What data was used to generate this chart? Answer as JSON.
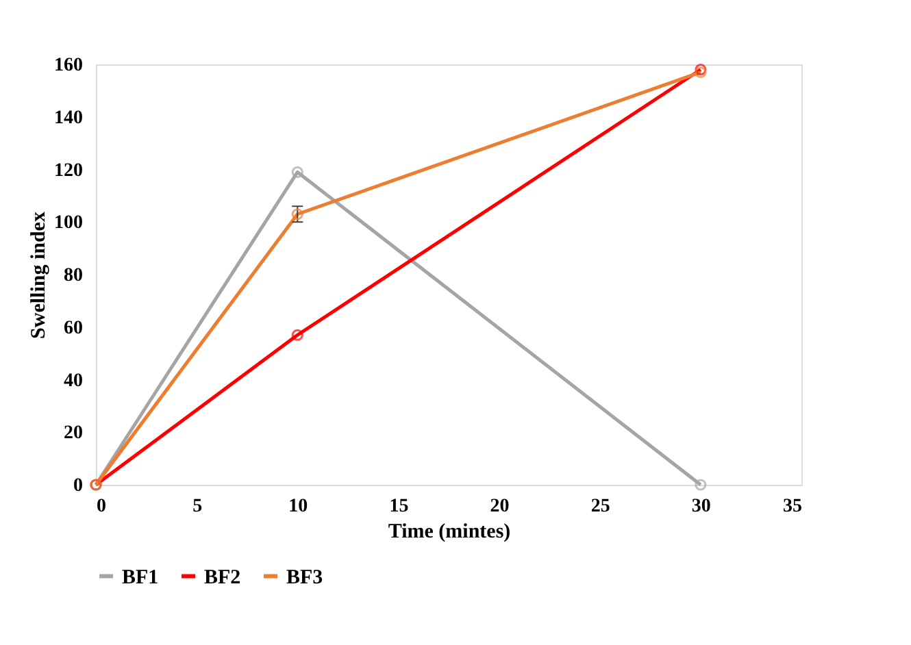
{
  "chart_data": {
    "type": "line",
    "xlabel": "Time (mintes)",
    "ylabel": "Swelling index",
    "x": [
      0,
      10,
      30
    ],
    "series": [
      {
        "name": "BF1",
        "color": "#a5a5a5",
        "values": [
          0,
          119,
          0
        ]
      },
      {
        "name": "BF2",
        "color": "#ff0000",
        "values": [
          0,
          57,
          158
        ]
      },
      {
        "name": "BF3",
        "color": "#ed7d31",
        "values": [
          0,
          103,
          157
        ],
        "errors": [
          null,
          3,
          null
        ]
      }
    ],
    "xlim": [
      0,
      35
    ],
    "xticks": [
      0,
      5,
      10,
      15,
      20,
      25,
      30,
      35
    ],
    "ylim": [
      0,
      160
    ],
    "yticks": [
      0,
      20,
      40,
      60,
      80,
      100,
      120,
      140,
      160
    ],
    "grid": false,
    "legend": "bottom",
    "marker": "circle",
    "line_style": "solid"
  }
}
